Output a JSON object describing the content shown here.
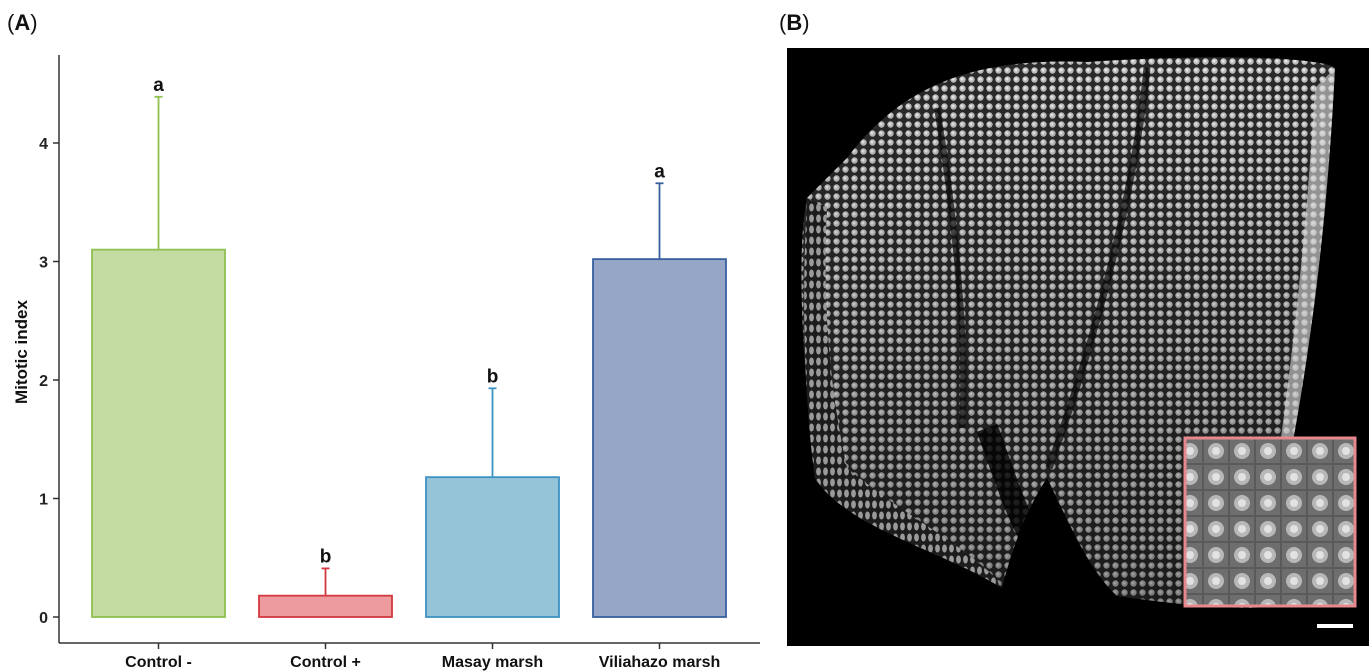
{
  "panels": {
    "a_label": "A",
    "b_label": "B"
  },
  "chart_data": {
    "type": "bar",
    "title": "",
    "xlabel": "",
    "ylabel": "Mitotic index",
    "ylim": [
      0,
      4.6
    ],
    "yticks": [
      0,
      1,
      2,
      3,
      4
    ],
    "categories": [
      "Control -",
      "Control +",
      "Masay marsh",
      "Viliahazo marsh"
    ],
    "values": [
      3.1,
      0.18,
      1.18,
      3.02
    ],
    "error_upper": [
      4.39,
      0.41,
      1.93,
      3.66
    ],
    "significance_letters": [
      "a",
      "b",
      "b",
      "a"
    ],
    "fill_colors": [
      "#c4dba2",
      "#ed9b9e",
      "#95c3d8",
      "#96a6c6"
    ],
    "stroke_colors": [
      "#8fc050",
      "#d1393f",
      "#3c92c2",
      "#37609f"
    ],
    "grid": false,
    "legend": "none"
  },
  "micrograph": {
    "description_icon": "fluorescence-root-tip-image",
    "inset_border_color": "#e8888e"
  }
}
